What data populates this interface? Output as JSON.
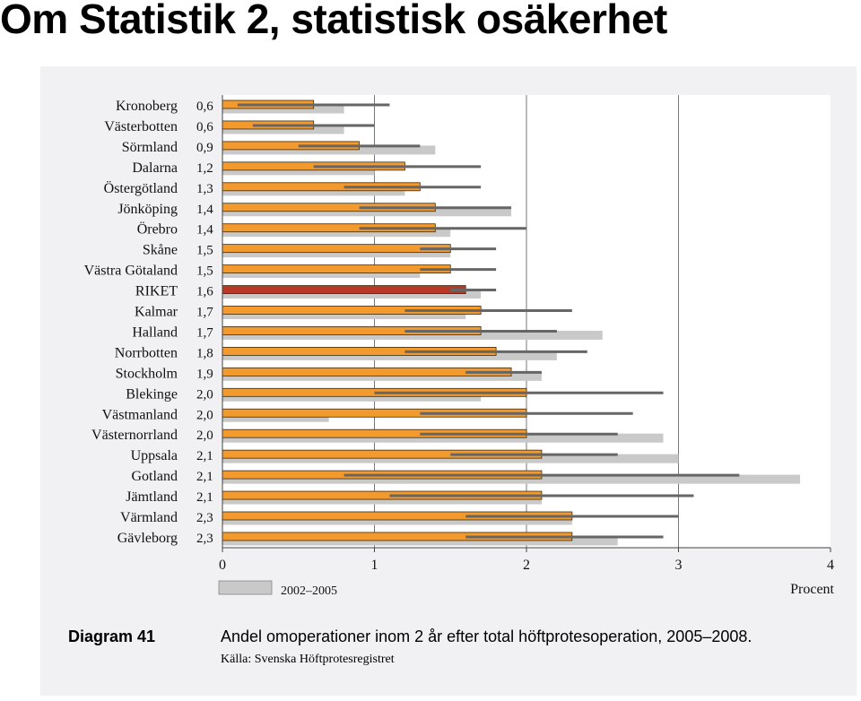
{
  "slide": {
    "title": "Om Statistik 2, statistisk osäkerhet"
  },
  "figure": {
    "diagram_label": "Diagram 41",
    "caption": "Andel omoperationer inom 2 år efter total höftprotesoperation, 2005–2008.",
    "source": "Källa: Svenska Höftprotesregistret"
  },
  "colors": {
    "current_bar": "#f39a2e",
    "highlight_bar": "#b83a26",
    "previous_bar": "#c9c9c9",
    "interval_line": "#666666",
    "panel_background": "#f1f1f3"
  },
  "chart_data": {
    "type": "bar",
    "orientation": "horizontal",
    "highlight": "RIKET",
    "unit_label": "Procent",
    "xlim": [
      0,
      4
    ],
    "x_ticks": [
      0,
      1,
      2,
      3,
      4
    ],
    "grid": "vertical lines at 1, 2, 3",
    "legend": [
      {
        "label": "2002–2005",
        "series": "previous"
      }
    ],
    "categories": [
      "Kronoberg",
      "Västerbotten",
      "Sörmland",
      "Dalarna",
      "Östergötland",
      "Jönköping",
      "Örebro",
      "Skåne",
      "Västra Götaland",
      "RIKET",
      "Kalmar",
      "Halland",
      "Norrbotten",
      "Stockholm",
      "Blekinge",
      "Västmanland",
      "Västernorrland",
      "Uppsala",
      "Gotland",
      "Jämtland",
      "Värmland",
      "Gävleborg"
    ],
    "value_labels": [
      "0,6",
      "0,6",
      "0,9",
      "1,2",
      "1,3",
      "1,4",
      "1,4",
      "1,5",
      "1,5",
      "1,6",
      "1,7",
      "1,7",
      "1,8",
      "1,9",
      "2,0",
      "2,0",
      "2,0",
      "2,1",
      "2,1",
      "2,1",
      "2,3",
      "2,3"
    ],
    "series": [
      {
        "key": "current",
        "values": [
          0.6,
          0.6,
          0.9,
          1.2,
          1.3,
          1.4,
          1.4,
          1.5,
          1.5,
          1.6,
          1.7,
          1.7,
          1.8,
          1.9,
          2.0,
          2.0,
          2.0,
          2.1,
          2.1,
          2.1,
          2.3,
          2.3
        ],
        "ci_low": [
          0.1,
          0.2,
          0.5,
          0.6,
          0.8,
          0.9,
          0.9,
          1.3,
          1.3,
          1.5,
          1.2,
          1.2,
          1.2,
          1.6,
          1.0,
          1.3,
          1.3,
          1.5,
          0.8,
          1.1,
          1.6,
          1.6
        ],
        "ci_high": [
          1.1,
          1.0,
          1.3,
          1.7,
          1.7,
          1.9,
          2.0,
          1.8,
          1.8,
          1.8,
          2.3,
          2.2,
          2.4,
          2.1,
          2.9,
          2.7,
          2.6,
          2.6,
          3.4,
          3.1,
          3.0,
          2.9
        ]
      },
      {
        "key": "previous",
        "name": "2002–2005",
        "values": [
          0.8,
          0.8,
          1.4,
          1.0,
          1.2,
          1.9,
          1.5,
          1.5,
          1.3,
          1.7,
          1.6,
          2.5,
          2.2,
          2.1,
          1.7,
          0.7,
          2.9,
          3.0,
          3.8,
          2.1,
          2.3,
          2.6
        ]
      }
    ]
  }
}
